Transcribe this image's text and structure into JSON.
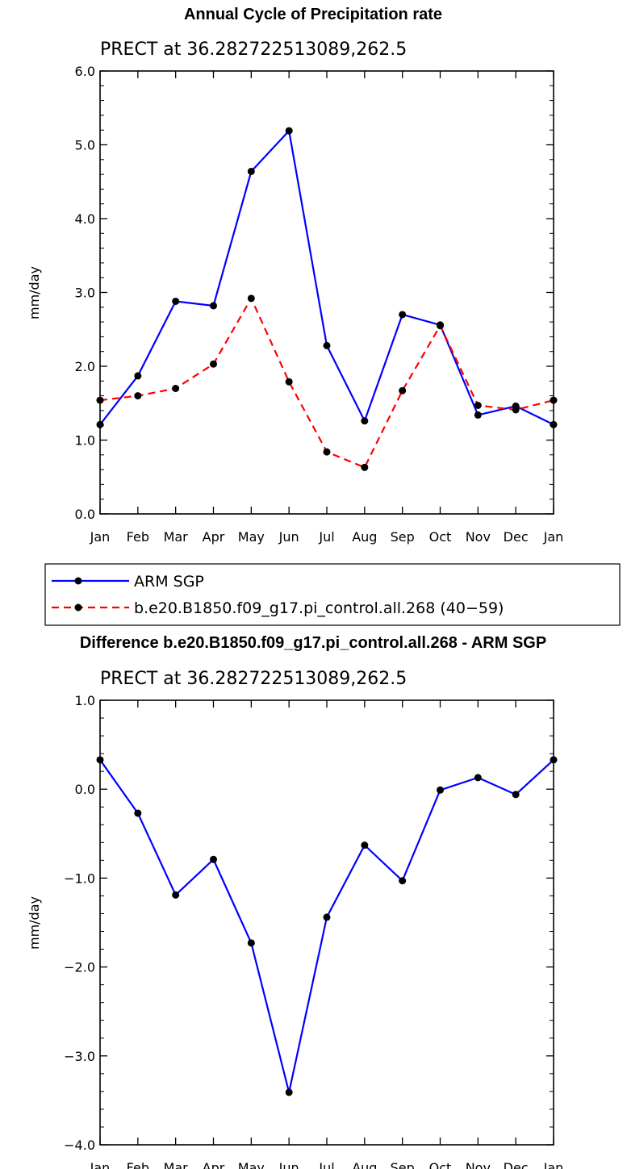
{
  "chart_data": [
    {
      "type": "line",
      "title": "Annual Cycle of Precipitation rate",
      "subtitle": "PRECT at 36.282722513089,262.5",
      "ylabel": "mm/day",
      "categories": [
        "Jan",
        "Feb",
        "Mar",
        "Apr",
        "May",
        "Jun",
        "Jul",
        "Aug",
        "Sep",
        "Oct",
        "Nov",
        "Dec",
        "Jan"
      ],
      "ylim": [
        0,
        6
      ],
      "yticks": [
        "0.0",
        "1.0",
        "2.0",
        "3.0",
        "4.0",
        "5.0",
        "6.0"
      ],
      "legend_position": "below",
      "series": [
        {
          "name": "ARM SGP",
          "color": "#0000ff",
          "dash": "solid",
          "values": [
            1.21,
            1.87,
            2.88,
            2.82,
            4.64,
            5.19,
            2.28,
            1.26,
            2.7,
            2.56,
            1.34,
            1.46,
            1.21
          ]
        },
        {
          "name": "b.e20.B1850.f09_g17.pi_control.all.268 (40−59)",
          "color": "#ff0000",
          "dash": "dashed",
          "values": [
            1.54,
            1.6,
            1.7,
            2.03,
            2.92,
            1.79,
            0.84,
            0.63,
            1.67,
            2.55,
            1.47,
            1.41,
            1.54
          ]
        }
      ]
    },
    {
      "type": "line",
      "title": "Difference b.e20.B1850.f09_g17.pi_control.all.268 - ARM SGP",
      "subtitle": "PRECT at 36.282722513089,262.5",
      "ylabel": "mm/day",
      "categories": [
        "Jan",
        "Feb",
        "Mar",
        "Apr",
        "May",
        "Jun",
        "Jul",
        "Aug",
        "Sep",
        "Oct",
        "Nov",
        "Dec",
        "Jan"
      ],
      "ylim": [
        -4,
        1
      ],
      "yticks": [
        "−4.0",
        "−3.0",
        "−2.0",
        "−1.0",
        "0.0",
        "1.0"
      ],
      "series": [
        {
          "color": "#0000ff",
          "dash": "solid",
          "values": [
            0.33,
            -0.27,
            -1.19,
            -0.79,
            -1.73,
            -3.41,
            -1.44,
            -0.63,
            -1.03,
            -0.01,
            0.13,
            -0.06,
            0.33
          ]
        }
      ]
    }
  ]
}
